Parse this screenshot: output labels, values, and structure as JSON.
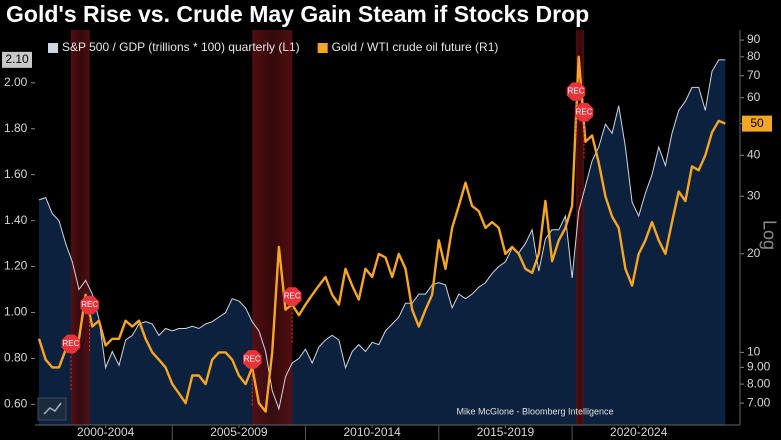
{
  "chart_data": {
    "type": "area_line",
    "title": "Gold's Rise vs. Crude May Gain Steam if Stocks Drop",
    "annotation": "Mike McGlone - Bloomberg Intelligence",
    "y2_axis_label": "Log",
    "y2_log": true,
    "grid": false,
    "legend": "top-left",
    "x": [
      2000,
      2000.25,
      2000.5,
      2000.75,
      2001,
      2001.25,
      2001.5,
      2001.75,
      2002,
      2002.25,
      2002.5,
      2002.75,
      2003,
      2003.25,
      2003.5,
      2003.75,
      2004,
      2004.25,
      2004.5,
      2004.75,
      2005,
      2005.25,
      2005.5,
      2005.75,
      2006,
      2006.25,
      2006.5,
      2006.75,
      2007,
      2007.25,
      2007.5,
      2007.75,
      2008,
      2008.25,
      2008.5,
      2008.75,
      2009,
      2009.25,
      2009.5,
      2009.75,
      2010,
      2010.25,
      2010.5,
      2010.75,
      2011,
      2011.25,
      2011.5,
      2011.75,
      2012,
      2012.25,
      2012.5,
      2012.75,
      2013,
      2013.25,
      2013.5,
      2013.75,
      2014,
      2014.25,
      2014.5,
      2014.75,
      2015,
      2015.25,
      2015.5,
      2015.75,
      2016,
      2016.25,
      2016.5,
      2016.75,
      2017,
      2017.25,
      2017.5,
      2017.75,
      2018,
      2018.25,
      2018.5,
      2018.75,
      2019,
      2019.25,
      2019.5,
      2019.75,
      2020,
      2020.25,
      2020.5,
      2020.75,
      2021,
      2021.25,
      2021.5,
      2021.75,
      2022,
      2022.25,
      2022.5,
      2022.75,
      2023,
      2023.25,
      2023.5,
      2023.75,
      2024,
      2024.25,
      2024.5,
      2024.75,
      2025,
      2025.25,
      2025.5,
      2025.75
    ],
    "xlim": [
      1999.85,
      2026.3
    ],
    "xticks": [
      {
        "value": 2002.5,
        "label": "2000-2004"
      },
      {
        "value": 2007.5,
        "label": "2005-2009"
      },
      {
        "value": 2012.5,
        "label": "2010-2014"
      },
      {
        "value": 2017.5,
        "label": "2015-2019"
      },
      {
        "value": 2022.5,
        "label": "2020-2024"
      }
    ],
    "ylim": [
      0.51,
      2.23
    ],
    "yticks": [
      {
        "value": 0.6,
        "label": "0.60"
      },
      {
        "value": 0.8,
        "label": "0.80"
      },
      {
        "value": 1.0,
        "label": "1.00"
      },
      {
        "value": 1.2,
        "label": "1.20"
      },
      {
        "value": 1.4,
        "label": "1.40"
      },
      {
        "value": 1.6,
        "label": "1.60"
      },
      {
        "value": 1.8,
        "label": "1.80"
      },
      {
        "value": 2.0,
        "label": "2.00"
      }
    ],
    "y2lim": [
      6.0,
      96.6
    ],
    "y2ticks": [
      {
        "value": 7,
        "label": "7.00"
      },
      {
        "value": 8,
        "label": "8.00"
      },
      {
        "value": 9,
        "label": "9.00"
      },
      10,
      20,
      30,
      40,
      50,
      60,
      70,
      80,
      90
    ],
    "recessions": [
      {
        "start": 2001.2,
        "end": 2001.9,
        "label": "REC"
      },
      {
        "start": 2008.0,
        "end": 2009.5,
        "label": "REC"
      },
      {
        "start": 2020.15,
        "end": 2020.45,
        "label": "REC"
      }
    ],
    "series": [
      {
        "name": "S&P 500 / GDP (trillions * 100) quarterly (L1)",
        "color": "#cfd6df",
        "fill": "#0c213d",
        "axis": "y",
        "current_label": "2.10",
        "values": [
          1.49,
          1.5,
          1.43,
          1.4,
          1.3,
          1.22,
          1.1,
          1.14,
          1.08,
          0.97,
          0.76,
          0.83,
          0.77,
          0.88,
          0.9,
          0.95,
          0.96,
          0.95,
          0.9,
          0.93,
          0.92,
          0.93,
          0.93,
          0.94,
          0.93,
          0.95,
          0.96,
          0.98,
          1.0,
          1.06,
          1.05,
          1.02,
          0.96,
          0.92,
          0.83,
          0.66,
          0.58,
          0.72,
          0.78,
          0.8,
          0.84,
          0.78,
          0.85,
          0.88,
          0.9,
          0.88,
          0.76,
          0.83,
          0.86,
          0.83,
          0.87,
          0.86,
          0.92,
          0.95,
          0.98,
          1.04,
          1.04,
          1.08,
          1.08,
          1.12,
          1.13,
          1.12,
          1.02,
          1.08,
          1.06,
          1.08,
          1.11,
          1.13,
          1.17,
          1.2,
          1.22,
          1.28,
          1.26,
          1.3,
          1.36,
          1.18,
          1.32,
          1.36,
          1.36,
          1.42,
          1.15,
          1.44,
          1.55,
          1.66,
          1.72,
          1.82,
          1.78,
          1.9,
          1.72,
          1.48,
          1.42,
          1.52,
          1.6,
          1.72,
          1.64,
          1.78,
          1.88,
          1.92,
          1.98,
          1.98,
          1.88,
          2.05,
          2.1,
          2.1
        ]
      },
      {
        "name": "Gold / WTI crude oil future  (R1)",
        "color": "#f5a623",
        "axis": "y2",
        "current_label": "50",
        "values": [
          11.0,
          9.5,
          9.0,
          9.0,
          10.2,
          10.0,
          11.0,
          15.0,
          12.0,
          12.5,
          10.5,
          11.0,
          11.0,
          12.5,
          12.0,
          12.5,
          11.0,
          10.0,
          9.5,
          9.0,
          8.0,
          7.5,
          7.0,
          8.5,
          8.5,
          8.0,
          9.5,
          10.0,
          10.0,
          9.5,
          8.5,
          8.0,
          9.0,
          7.0,
          6.6,
          10.0,
          21.0,
          13.5,
          14.0,
          13.0,
          14.0,
          15.0,
          16.0,
          17.0,
          15.0,
          14.0,
          18.0,
          16.0,
          14.5,
          18.0,
          17.0,
          20.0,
          19.5,
          17.0,
          20.0,
          18.0,
          13.5,
          12.0,
          13.5,
          15.0,
          22.0,
          18.0,
          24.0,
          28.0,
          33.0,
          28.0,
          27.0,
          24.0,
          25.0,
          24.0,
          20.0,
          21.0,
          20.0,
          18.0,
          17.5,
          20.0,
          29.0,
          19.0,
          22.0,
          24.0,
          28.0,
          80.0,
          44.0,
          46.0,
          38.0,
          30.0,
          26.0,
          24.0,
          18.0,
          16.0,
          20.0,
          22.0,
          25.0,
          22.0,
          20.0,
          25.0,
          31.0,
          29.0,
          37.0,
          36.0,
          40.0,
          47.0,
          51.0,
          50.0
        ]
      }
    ]
  }
}
